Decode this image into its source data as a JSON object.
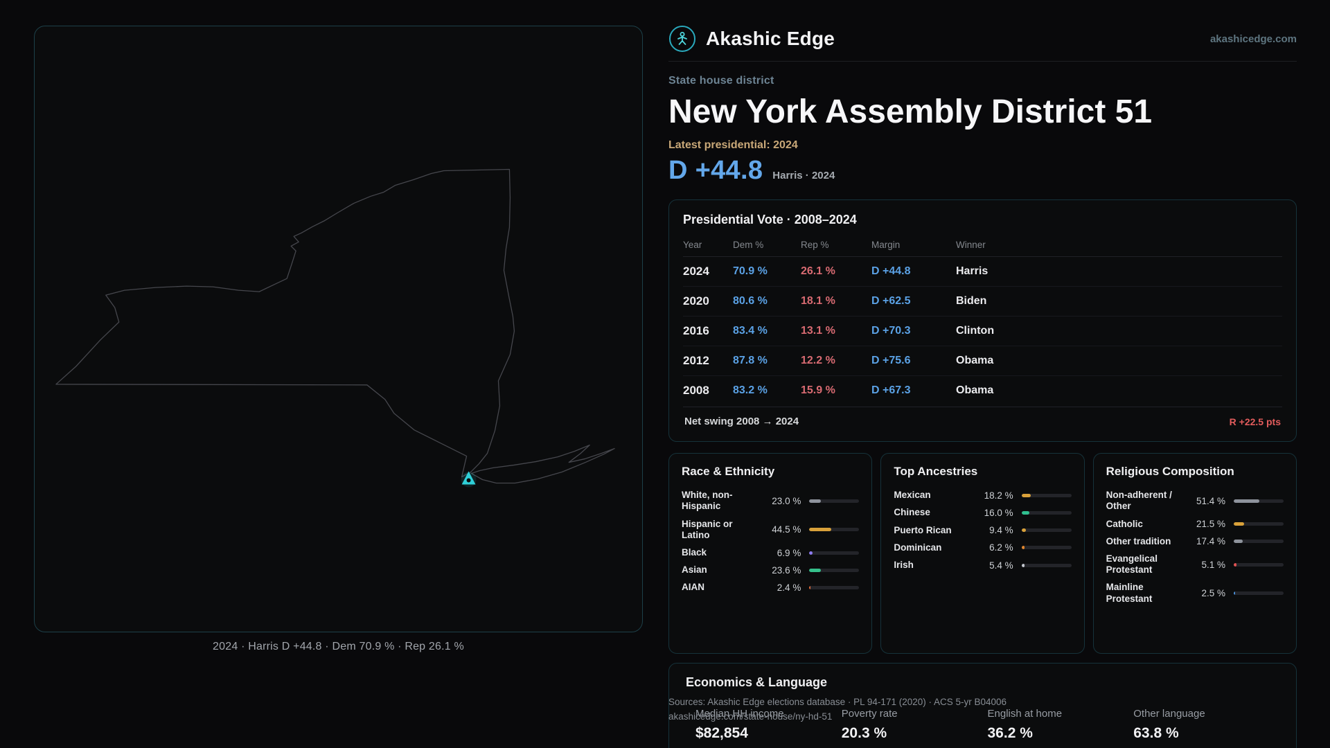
{
  "brand": {
    "name": "Akashic Edge",
    "domain": "akashicedge.com"
  },
  "district": {
    "type_label": "State house district",
    "title": "New York Assembly District 51",
    "latest_label": "Latest presidential: 2024",
    "headline_margin": "D +44.8",
    "headline_context": "Harris · 2024"
  },
  "map": {
    "caption": "2024 · Harris D +44.8 · Dem 70.9 % · Rep 26.1 %",
    "marker": "district-location-marker"
  },
  "presidential": {
    "title": "Presidential Vote · 2008–2024",
    "columns": [
      "Year",
      "Dem %",
      "Rep %",
      "Margin",
      "Winner"
    ],
    "rows": [
      {
        "year": "2024",
        "dem": "70.9 %",
        "rep": "26.1 %",
        "margin": "D +44.8",
        "winner": "Harris"
      },
      {
        "year": "2020",
        "dem": "80.6 %",
        "rep": "18.1 %",
        "margin": "D +62.5",
        "winner": "Biden"
      },
      {
        "year": "2016",
        "dem": "83.4 %",
        "rep": "13.1 %",
        "margin": "D +70.3",
        "winner": "Clinton"
      },
      {
        "year": "2012",
        "dem": "87.8 %",
        "rep": "12.2 %",
        "margin": "D +75.6",
        "winner": "Obama"
      },
      {
        "year": "2008",
        "dem": "83.2 %",
        "rep": "15.9 %",
        "margin": "D +67.3",
        "winner": "Obama"
      }
    ],
    "net_swing_label": "Net swing 2008 → 2024",
    "net_swing_value": "R +22.5 pts"
  },
  "demographics": {
    "race": {
      "title": "Race & Ethnicity",
      "rows": [
        {
          "label": "White, non-Hispanic",
          "value": "23.0 %",
          "pct": 23.0,
          "color": "#8e939c"
        },
        {
          "label": "Hispanic or Latino",
          "value": "44.5 %",
          "pct": 44.5,
          "color": "#d9a13a"
        },
        {
          "label": "Black",
          "value": "6.9 %",
          "pct": 6.9,
          "color": "#8d7bf0"
        },
        {
          "label": "Asian",
          "value": "23.6 %",
          "pct": 23.6,
          "color": "#35c08b"
        },
        {
          "label": "AIAN",
          "value": "2.4 %",
          "pct": 2.4,
          "color": "#e06a3a"
        }
      ]
    },
    "ancestries": {
      "title": "Top Ancestries",
      "rows": [
        {
          "label": "Mexican",
          "value": "18.2 %",
          "pct": 18.2,
          "color": "#d9a13a"
        },
        {
          "label": "Chinese",
          "value": "16.0 %",
          "pct": 16.0,
          "color": "#2fbf8f"
        },
        {
          "label": "Puerto Rican",
          "value": "9.4 %",
          "pct": 9.4,
          "color": "#d9a13a"
        },
        {
          "label": "Dominican",
          "value": "6.2 %",
          "pct": 6.2,
          "color": "#e0862e"
        },
        {
          "label": "Irish",
          "value": "5.4 %",
          "pct": 5.4,
          "color": "#c3c7ce"
        }
      ]
    },
    "religion": {
      "title": "Religious Composition",
      "rows": [
        {
          "label": "Non-adherent / Other",
          "value": "51.4 %",
          "pct": 51.4,
          "color": "#8e939c"
        },
        {
          "label": "Catholic",
          "value": "21.5 %",
          "pct": 21.5,
          "color": "#d9a13a"
        },
        {
          "label": "Other tradition",
          "value": "17.4 %",
          "pct": 17.4,
          "color": "#8e939c"
        },
        {
          "label": "Evangelical Protestant",
          "value": "5.1 %",
          "pct": 5.1,
          "color": "#e05252"
        },
        {
          "label": "Mainline Protestant",
          "value": "2.5 %",
          "pct": 2.5,
          "color": "#4a90d9"
        }
      ]
    }
  },
  "economics": {
    "title": "Economics & Language",
    "stats": [
      {
        "label": "Median HH income",
        "value": "$82,854"
      },
      {
        "label": "Poverty rate",
        "value": "20.3 %"
      },
      {
        "label": "English at home",
        "value": "36.2 %"
      },
      {
        "label": "Other language",
        "value": "63.8 %"
      }
    ]
  },
  "footer": {
    "sources": "Sources: Akashic Edge elections database · PL 94-171 (2020) · ACS 5-yr B04006",
    "permalink": "akashicedge.com/state-house/ny-hd-51"
  },
  "colors": {
    "dem_blue": "#5ba2e6",
    "rep_red": "#d96b72",
    "accent_teal": "#2fd0d8",
    "gold": "#c9a878"
  },
  "chart_data": [
    {
      "type": "table",
      "title": "Presidential Vote · 2008–2024",
      "columns": [
        "Year",
        "Dem %",
        "Rep %",
        "Margin",
        "Winner"
      ],
      "rows": [
        [
          "2024",
          70.9,
          26.1,
          "D +44.8",
          "Harris"
        ],
        [
          "2020",
          80.6,
          18.1,
          "D +62.5",
          "Biden"
        ],
        [
          "2016",
          83.4,
          13.1,
          "D +70.3",
          "Clinton"
        ],
        [
          "2012",
          87.8,
          12.2,
          "D +75.6",
          "Obama"
        ],
        [
          "2008",
          83.2,
          15.9,
          "D +67.3",
          "Obama"
        ]
      ],
      "footnote": "Net swing 2008 → 2024: R +22.5 pts"
    },
    {
      "type": "bar",
      "title": "Race & Ethnicity",
      "categories": [
        "White, non-Hispanic",
        "Hispanic or Latino",
        "Black",
        "Asian",
        "AIAN"
      ],
      "values": [
        23.0,
        44.5,
        6.9,
        23.6,
        2.4
      ],
      "xlim": [
        0,
        100
      ]
    },
    {
      "type": "bar",
      "title": "Top Ancestries",
      "categories": [
        "Mexican",
        "Chinese",
        "Puerto Rican",
        "Dominican",
        "Irish"
      ],
      "values": [
        18.2,
        16.0,
        9.4,
        6.2,
        5.4
      ],
      "xlim": [
        0,
        100
      ]
    },
    {
      "type": "bar",
      "title": "Religious Composition",
      "categories": [
        "Non-adherent / Other",
        "Catholic",
        "Other tradition",
        "Evangelical Protestant",
        "Mainline Protestant"
      ],
      "values": [
        51.4,
        21.5,
        17.4,
        5.1,
        2.5
      ],
      "xlim": [
        0,
        100
      ]
    },
    {
      "type": "bar",
      "title": "Economics & Language",
      "categories": [
        "Median HH income",
        "Poverty rate",
        "English at home",
        "Other language"
      ],
      "values": [
        "$82,854",
        20.3,
        36.2,
        63.8
      ]
    }
  ]
}
